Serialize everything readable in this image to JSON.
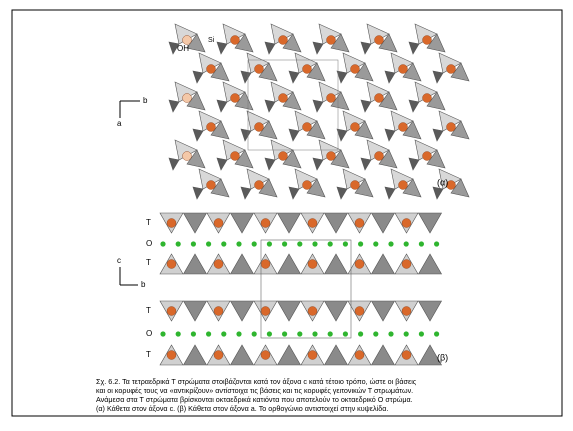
{
  "figure": {
    "panel_a": {
      "labels": [
        "OH",
        "Si"
      ],
      "axes": [
        "b",
        "a"
      ],
      "tag": "(α)"
    },
    "panel_b": {
      "layers": [
        "T",
        "O",
        "T",
        "T",
        "O",
        "T"
      ],
      "axes": [
        "c",
        "b"
      ],
      "tag": "(β)"
    }
  },
  "caption": [
    "Σχ. 6.2. Τα τετραεδρικά Τ στρώματα στοιβάζονται κατά τον άξονα c κατά τέτοιο τρόπο, ώστε οι βάσεις",
    "και οι κορυφές τους να «αντικρίζουν» αντίστοιχα τις βάσεις και τις κορυφές γειτονικών Τ στρωμάτων.",
    "Ανάμεσα στα Τ στρώματα βρίσκονται οκταεδρικά κατιόντα που αποτελούν το οκταεδρικό Ο στρώμα.",
    "(α) Κάθετα στον άξονα c. (β) Κάθετα στον άξονα a. Το ορθογώνιο αντιστοιχεί στην κυψελίδα."
  ]
}
